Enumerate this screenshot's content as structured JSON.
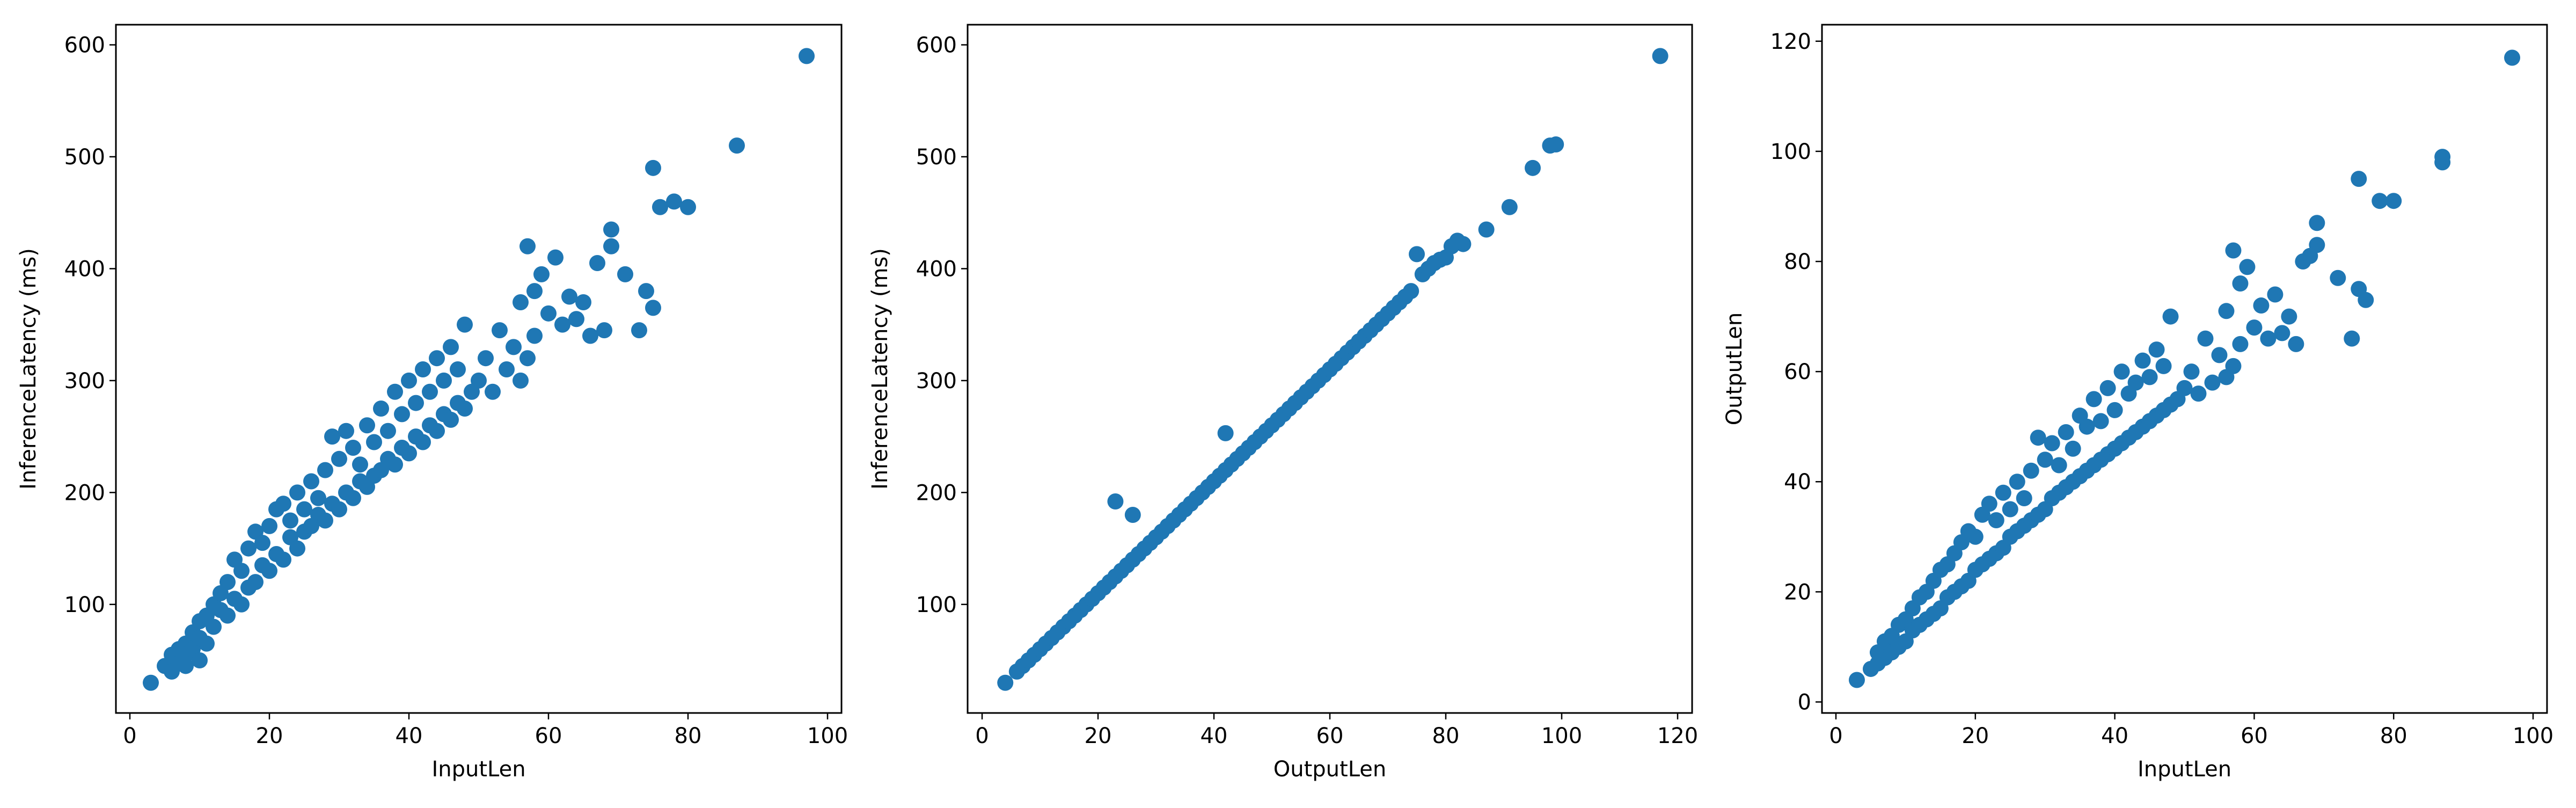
{
  "chart_data": [
    {
      "type": "scatter",
      "title": "",
      "xlabel": "InputLen",
      "ylabel": "InferenceLatency (ms)",
      "xlim": [
        -2,
        102
      ],
      "ylim": [
        3,
        618
      ],
      "xticks": [
        0,
        20,
        40,
        60,
        80,
        100
      ],
      "yticks": [
        100,
        200,
        300,
        400,
        500,
        600
      ],
      "grid": false,
      "color": "#1f77b4",
      "x": [
        3,
        5,
        6,
        6,
        7,
        7,
        8,
        8,
        8,
        9,
        9,
        10,
        10,
        10,
        11,
        11,
        12,
        12,
        13,
        13,
        14,
        14,
        15,
        15,
        16,
        16,
        17,
        17,
        18,
        18,
        19,
        19,
        20,
        20,
        21,
        21,
        22,
        22,
        23,
        23,
        24,
        24,
        25,
        25,
        26,
        26,
        27,
        27,
        28,
        28,
        29,
        29,
        30,
        30,
        31,
        31,
        32,
        32,
        33,
        33,
        34,
        34,
        35,
        35,
        36,
        36,
        37,
        37,
        38,
        38,
        39,
        39,
        40,
        40,
        41,
        41,
        42,
        42,
        43,
        43,
        44,
        44,
        45,
        45,
        46,
        46,
        47,
        47,
        48,
        48,
        49,
        50,
        51,
        52,
        53,
        54,
        55,
        56,
        56,
        57,
        57,
        58,
        58,
        59,
        60,
        61,
        62,
        63,
        64,
        65,
        66,
        67,
        68,
        69,
        69,
        71,
        73,
        74,
        75,
        75,
        76,
        78,
        80,
        87,
        97
      ],
      "y": [
        30,
        45,
        40,
        55,
        50,
        60,
        45,
        65,
        55,
        60,
        75,
        50,
        70,
        85,
        65,
        90,
        80,
        100,
        95,
        110,
        90,
        120,
        105,
        140,
        100,
        130,
        115,
        150,
        120,
        165,
        135,
        155,
        130,
        170,
        145,
        185,
        140,
        190,
        160,
        175,
        150,
        200,
        165,
        185,
        170,
        210,
        180,
        195,
        175,
        220,
        190,
        250,
        185,
        230,
        200,
        255,
        195,
        240,
        210,
        225,
        205,
        260,
        215,
        245,
        220,
        275,
        230,
        255,
        225,
        290,
        240,
        270,
        235,
        300,
        250,
        280,
        245,
        310,
        260,
        290,
        255,
        320,
        270,
        300,
        265,
        330,
        280,
        310,
        275,
        350,
        290,
        300,
        320,
        290,
        345,
        310,
        330,
        300,
        370,
        320,
        420,
        340,
        380,
        395,
        360,
        410,
        350,
        375,
        355,
        370,
        340,
        405,
        345,
        435,
        420,
        395,
        345,
        380,
        490,
        365,
        455,
        460,
        455,
        510,
        590
      ]
    },
    {
      "type": "scatter",
      "title": "",
      "xlabel": "OutputLen",
      "ylabel": "InferenceLatency (ms)",
      "xlim": [
        -2.5,
        122.5
      ],
      "ylim": [
        3,
        618
      ],
      "xticks": [
        0,
        20,
        40,
        60,
        80,
        100,
        120
      ],
      "yticks": [
        100,
        200,
        300,
        400,
        500,
        600
      ],
      "grid": false,
      "color": "#1f77b4",
      "x": [
        4,
        6,
        7,
        8,
        9,
        10,
        11,
        12,
        13,
        14,
        15,
        16,
        17,
        18,
        19,
        20,
        21,
        22,
        23,
        23,
        24,
        25,
        26,
        26,
        27,
        28,
        29,
        30,
        31,
        32,
        33,
        34,
        35,
        36,
        37,
        38,
        39,
        40,
        41,
        42,
        42,
        43,
        44,
        45,
        46,
        47,
        48,
        49,
        50,
        51,
        52,
        53,
        54,
        55,
        56,
        57,
        58,
        59,
        60,
        61,
        62,
        63,
        64,
        65,
        66,
        67,
        68,
        69,
        70,
        71,
        72,
        73,
        74,
        75,
        76,
        77,
        78,
        79,
        80,
        81,
        82,
        83,
        87,
        91,
        95,
        98,
        99,
        117
      ],
      "y": [
        30,
        40,
        45,
        50,
        55,
        60,
        65,
        70,
        75,
        80,
        85,
        90,
        95,
        100,
        105,
        110,
        115,
        120,
        125,
        192,
        130,
        135,
        140,
        180,
        145,
        150,
        155,
        160,
        165,
        170,
        175,
        180,
        185,
        190,
        195,
        200,
        205,
        210,
        215,
        220,
        253,
        225,
        230,
        235,
        240,
        245,
        250,
        255,
        260,
        265,
        270,
        275,
        280,
        285,
        290,
        295,
        300,
        305,
        310,
        315,
        320,
        325,
        330,
        335,
        340,
        345,
        350,
        355,
        360,
        365,
        370,
        375,
        380,
        413,
        395,
        400,
        405,
        408,
        410,
        420,
        425,
        422,
        435,
        455,
        490,
        510,
        511,
        590
      ]
    },
    {
      "type": "scatter",
      "title": "",
      "xlabel": "InputLen",
      "ylabel": "OutputLen",
      "xlim": [
        -2,
        102
      ],
      "ylim": [
        -2,
        123
      ],
      "xticks": [
        0,
        20,
        40,
        60,
        80,
        100
      ],
      "yticks": [
        0,
        20,
        40,
        60,
        80,
        100,
        120
      ],
      "grid": false,
      "color": "#1f77b4",
      "x": [
        3,
        5,
        6,
        6,
        7,
        7,
        8,
        8,
        9,
        9,
        10,
        10,
        11,
        11,
        12,
        12,
        13,
        13,
        14,
        14,
        15,
        15,
        16,
        16,
        17,
        17,
        18,
        18,
        19,
        19,
        20,
        20,
        21,
        21,
        22,
        22,
        23,
        23,
        24,
        24,
        25,
        25,
        26,
        26,
        27,
        27,
        28,
        28,
        29,
        29,
        30,
        30,
        31,
        31,
        32,
        32,
        33,
        33,
        34,
        34,
        35,
        35,
        36,
        36,
        37,
        37,
        38,
        38,
        39,
        39,
        40,
        40,
        41,
        41,
        42,
        42,
        43,
        43,
        44,
        44,
        45,
        45,
        46,
        46,
        47,
        47,
        48,
        48,
        49,
        50,
        51,
        52,
        53,
        54,
        55,
        56,
        56,
        57,
        57,
        58,
        58,
        59,
        60,
        61,
        62,
        63,
        64,
        65,
        66,
        67,
        68,
        69,
        69,
        72,
        74,
        75,
        75,
        76,
        78,
        80,
        87,
        87,
        97
      ],
      "y": [
        4,
        6,
        7,
        9,
        8,
        11,
        9,
        12,
        10,
        14,
        11,
        15,
        13,
        17,
        14,
        19,
        15,
        20,
        16,
        22,
        17,
        24,
        19,
        25,
        20,
        27,
        21,
        29,
        22,
        31,
        24,
        30,
        25,
        34,
        26,
        36,
        27,
        33,
        28,
        38,
        30,
        35,
        31,
        40,
        32,
        37,
        33,
        42,
        34,
        48,
        35,
        44,
        37,
        47,
        38,
        43,
        39,
        49,
        40,
        46,
        41,
        52,
        42,
        50,
        43,
        55,
        44,
        51,
        45,
        57,
        46,
        53,
        47,
        60,
        48,
        56,
        49,
        58,
        50,
        62,
        51,
        59,
        52,
        64,
        53,
        61,
        54,
        70,
        55,
        57,
        60,
        56,
        66,
        58,
        63,
        59,
        71,
        61,
        82,
        65,
        76,
        79,
        68,
        72,
        66,
        74,
        67,
        70,
        65,
        80,
        81,
        83,
        87,
        77,
        66,
        95,
        75,
        73,
        91,
        91,
        98,
        99,
        117
      ]
    }
  ]
}
